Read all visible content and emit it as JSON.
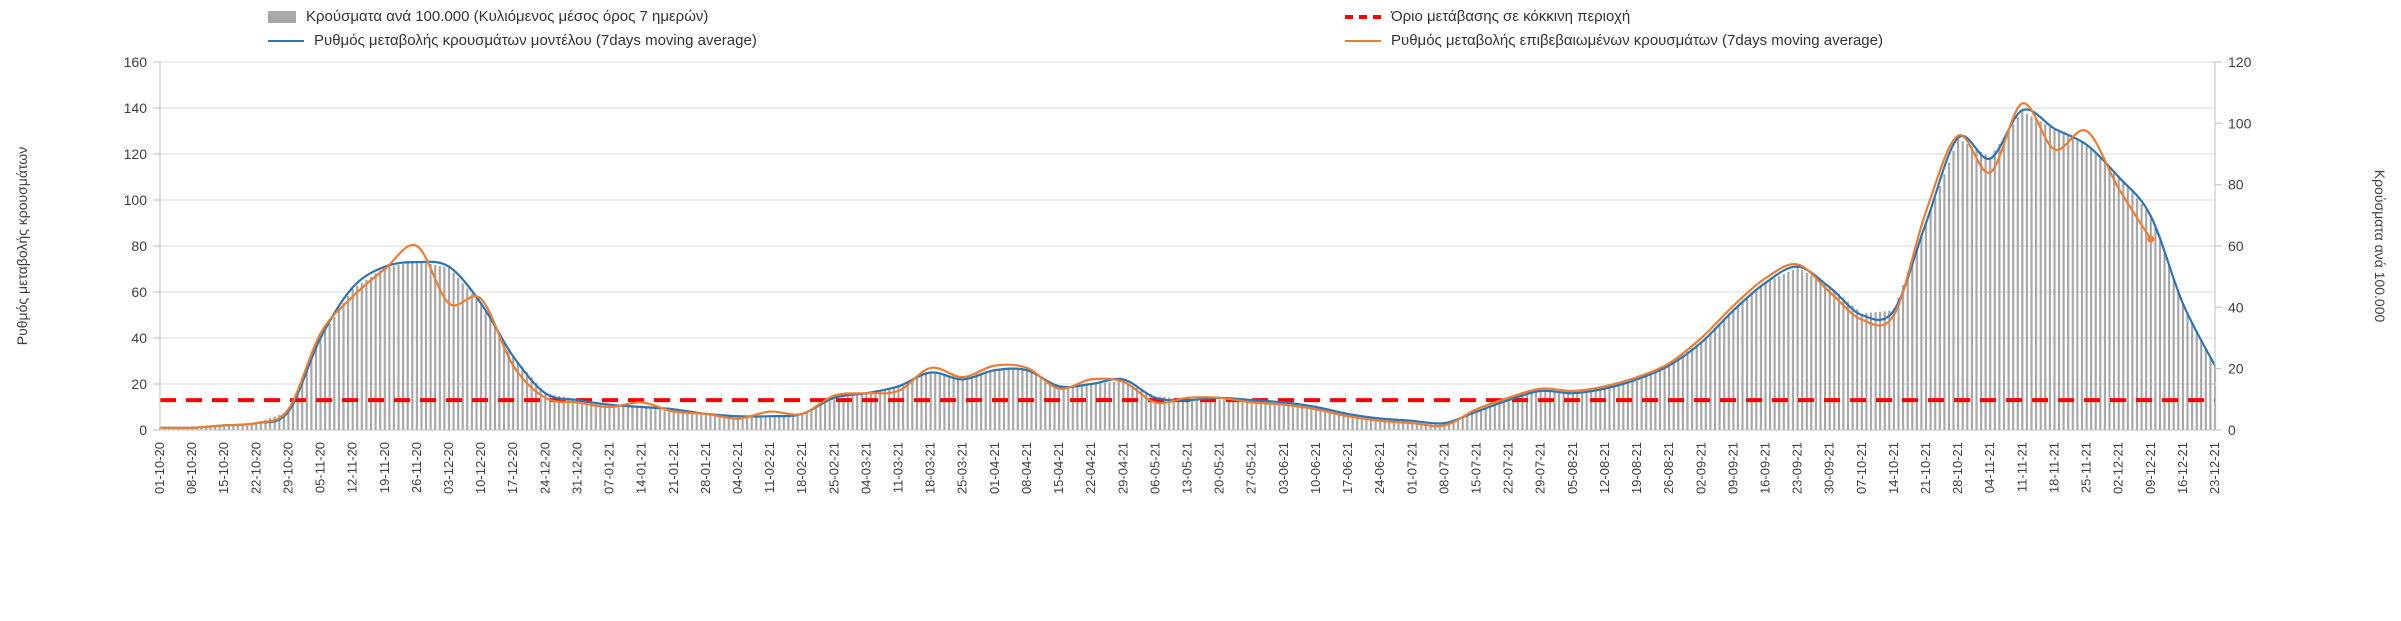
{
  "legend": {
    "bars": "Κρούσματα ανά 100.000 (Κυλιόμενος μέσος όρος 7 ημερών)",
    "threshold": "Όριο μετάβασης σε κόκκινη περιοχή",
    "model": "Ρυθμός μεταβολής κρουσμάτων μοντέλου (7days moving average)",
    "confirmed": "Ρυθμός μεταβολής επιβεβαιωμένων κρουσμάτων (7days moving average)"
  },
  "axes": {
    "left_label": "Ρυθμός μεταβολής κρουσμάτων",
    "right_label": "Κρούσματα ανά 100.000",
    "left_ticks": [
      0,
      20,
      40,
      60,
      80,
      100,
      120,
      140,
      160
    ],
    "right_ticks": [
      0,
      20,
      40,
      60,
      80,
      100,
      120
    ]
  },
  "colors": {
    "bars": "#a8a8a8",
    "model": "#2e75b6",
    "confirmed": "#ed7d31",
    "threshold": "#ff0000",
    "grid": "#d9d9d9",
    "axis_line": "#bfbfbf",
    "axis_text": "#404040"
  },
  "chart_data": {
    "type": "bar",
    "title": "",
    "xlabel": "",
    "left_ylabel": "Ρυθμός μεταβολής κρουσμάτων",
    "right_ylabel": "Κρούσματα ανά 100.000",
    "left_ylim": [
      0,
      160
    ],
    "right_ylim": [
      0,
      120
    ],
    "grid": true,
    "legend_position": "top",
    "x": [
      "01-10-20",
      "08-10-20",
      "15-10-20",
      "22-10-20",
      "29-10-20",
      "05-11-20",
      "12-11-20",
      "19-11-20",
      "26-11-20",
      "03-12-20",
      "10-12-20",
      "17-12-20",
      "24-12-20",
      "31-12-20",
      "07-01-21",
      "14-01-21",
      "21-01-21",
      "28-01-21",
      "04-02-21",
      "11-02-21",
      "18-02-21",
      "25-02-21",
      "04-03-21",
      "11-03-21",
      "18-03-21",
      "25-03-21",
      "01-04-21",
      "08-04-21",
      "15-04-21",
      "22-04-21",
      "29-04-21",
      "06-05-21",
      "13-05-21",
      "20-05-21",
      "27-05-21",
      "03-06-21",
      "10-06-21",
      "17-06-21",
      "24-06-21",
      "01-07-21",
      "08-07-21",
      "15-07-21",
      "22-07-21",
      "29-07-21",
      "05-08-21",
      "12-08-21",
      "19-08-21",
      "26-08-21",
      "02-09-21",
      "09-09-21",
      "16-09-21",
      "23-09-21",
      "30-09-21",
      "07-10-21",
      "14-10-21",
      "21-10-21",
      "28-10-21",
      "04-11-21",
      "11-11-21",
      "18-11-21",
      "25-11-21",
      "02-12-21",
      "09-12-21",
      "16-12-21",
      "23-12-21"
    ],
    "series": [
      {
        "id": "bars",
        "name": "Κρούσματα ανά 100.000 (Κυλιόμενος μέσος όρος 7 ημερών)",
        "type": "bar",
        "axis": "right",
        "color": "#a8a8a8",
        "values": [
          0.8,
          0.8,
          1.5,
          2.3,
          6,
          30,
          46,
          53,
          55,
          53,
          41,
          24,
          12,
          10,
          8,
          8,
          7,
          5,
          4.5,
          4.5,
          5,
          10,
          12,
          14,
          19,
          17,
          20,
          20,
          14,
          15,
          16,
          11,
          10,
          10,
          10,
          9,
          8,
          5,
          4,
          3,
          2,
          6,
          10,
          13,
          12,
          14,
          16,
          21,
          29,
          39,
          48,
          53,
          47,
          38,
          39,
          68,
          95,
          89,
          104,
          98,
          93,
          83,
          70,
          41,
          21
        ]
      },
      {
        "id": "model",
        "name": "Ρυθμός μεταβολής κρουσμάτων μοντέλου (7days moving average)",
        "type": "line",
        "axis": "left",
        "color": "#2e75b6",
        "values": [
          1,
          1,
          2,
          3,
          8,
          40,
          62,
          71,
          73,
          71,
          55,
          32,
          16,
          13,
          11,
          10,
          9,
          7,
          6,
          6,
          7,
          14,
          16,
          19,
          25,
          22,
          26,
          26,
          19,
          20,
          22,
          14,
          13,
          14,
          13,
          12,
          10,
          7,
          5,
          4,
          3,
          8,
          13,
          17,
          16,
          18,
          22,
          28,
          38,
          52,
          64,
          71,
          62,
          50,
          52,
          90,
          127,
          118,
          139,
          131,
          124,
          110,
          93,
          55,
          28
        ]
      },
      {
        "id": "confirmed",
        "name": "Ρυθμός μεταβολής επιβεβαιωμένων κρουσμάτων (7days moving average)",
        "type": "line",
        "axis": "left",
        "color": "#ed7d31",
        "values": [
          1,
          1,
          2,
          3,
          9,
          42,
          58,
          70,
          80,
          55,
          57,
          28,
          14,
          12,
          10,
          12,
          8,
          7,
          5,
          8,
          7,
          15,
          16,
          17,
          27,
          23,
          28,
          27,
          18,
          22,
          21,
          12,
          14,
          14,
          12,
          11,
          9,
          6,
          4,
          3,
          2,
          9,
          14,
          18,
          17,
          19,
          23,
          29,
          40,
          54,
          66,
          72,
          60,
          48,
          50,
          95,
          128,
          112,
          142,
          122,
          130,
          105,
          83,
          null,
          null
        ]
      },
      {
        "id": "threshold",
        "name": "Όριο μετάβασης σε κόκκινη περιοχή",
        "type": "threshold",
        "axis": "left",
        "color": "#ff0000",
        "value": 13
      }
    ]
  }
}
